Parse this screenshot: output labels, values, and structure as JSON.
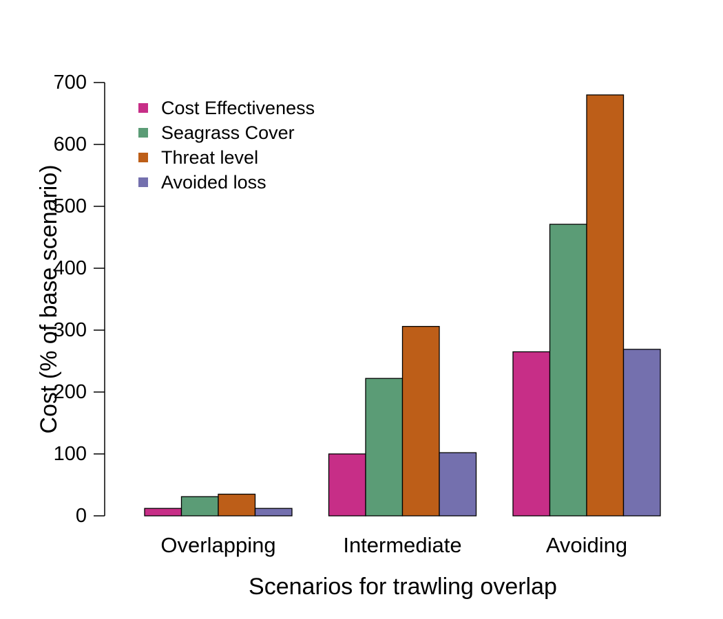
{
  "chart_data": {
    "type": "bar",
    "title": "",
    "xlabel": "Scenarios for trawling overlap",
    "ylabel": "Cost (% of base scenario)",
    "categories": [
      "Overlapping",
      "Intermediate",
      "Avoiding"
    ],
    "series": [
      {
        "name": "Cost Effectiveness",
        "color": "#c72e87",
        "values": [
          12,
          100,
          265
        ]
      },
      {
        "name": "Seagrass Cover",
        "color": "#5b9c76",
        "values": [
          31,
          222,
          471
        ]
      },
      {
        "name": "Threat level",
        "color": "#bd5e18",
        "values": [
          35,
          306,
          680
        ]
      },
      {
        "name": "Avoided loss",
        "color": "#7470ae",
        "values": [
          12,
          102,
          269
        ]
      }
    ],
    "yticks": [
      0,
      100,
      200,
      300,
      400,
      500,
      600,
      700
    ],
    "ylim": [
      0,
      700
    ],
    "grid": false,
    "legend_position": "top-left"
  }
}
